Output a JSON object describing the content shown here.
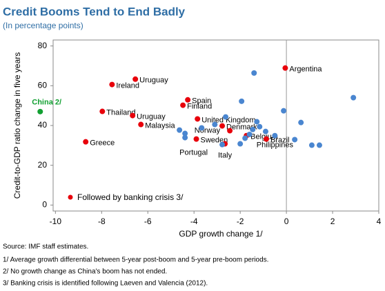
{
  "chart_data": {
    "type": "scatter",
    "title": "Credit Booms Tend to End Badly",
    "subtitle": "(In percentage points)",
    "x_label": "GDP growth change 1/",
    "y_label": "Credit-to-GDP ratio change in five years",
    "xlim": [
      -10.1,
      4
    ],
    "ylim": [
      -3,
      83
    ],
    "xticks": [
      -10,
      -8,
      -6,
      -4,
      -2,
      0,
      2,
      4
    ],
    "yticks": [
      0,
      20,
      40,
      60,
      80
    ],
    "series": [
      {
        "name": "Followed by banking crisis 3/",
        "color": "#e8000b",
        "x": [
          -6.54,
          -7.55,
          -0.05,
          -4.27,
          -4.48,
          -7.97,
          -6.66,
          -6.3,
          -3.85,
          -2.78,
          -2.45,
          -3.9,
          -8.69,
          -2.66,
          -1.73,
          -0.87
        ],
        "values": [
          63.3,
          60.6,
          68.9,
          52.9,
          50.2,
          47.1,
          45,
          40.5,
          43.3,
          39.8,
          37.4,
          33.2,
          31.8,
          30.8,
          34.9,
          33.2
        ],
        "labels": [
          "Uruguay",
          "Ireland",
          "Argentina",
          "Spain",
          "Finland",
          "Thailand",
          "Uruguay",
          "Malaysia",
          "United Kingdom",
          "Denmark",
          "Norway",
          "Sweden",
          "Greece",
          "Italy",
          "Belgium",
          "Brazil"
        ]
      },
      {
        "color": "#4a86d0",
        "x": [
          -1.4,
          -1.94,
          2.9,
          -0.12,
          0.63,
          -2.63,
          -4.63,
          -4.39,
          -4.39,
          -3.67,
          -1.28,
          -1.46,
          -1.6,
          -1.79,
          -2.0,
          -1.16,
          -0.9,
          -0.5,
          0.36,
          1.1,
          1.43,
          -2.78,
          -3.1
        ],
        "values": [
          66.4,
          52.2,
          54,
          47.4,
          41.5,
          44.3,
          37.7,
          36,
          33.9,
          38.8,
          41.9,
          38,
          35.5,
          33.6,
          30.8,
          39.4,
          37,
          34.9,
          32.9,
          30.1,
          30.1,
          30.4,
          40.5
        ],
        "labels": [
          null,
          null,
          null,
          null,
          null,
          null,
          null,
          null,
          "Portugal",
          null,
          null,
          null,
          null,
          null,
          null,
          null,
          null,
          "Philippines",
          null,
          null,
          null,
          null,
          null
        ]
      },
      {
        "color": "#12a032",
        "x": [
          -10.66
        ],
        "values": [
          47
        ],
        "labels": [
          "China 2/"
        ]
      }
    ],
    "notes": [
      "Source: IMF staff estimates.",
      "1/ Average growth differential between 5-year post-boom and 5-year pre-boom periods.",
      "2/ No growth change as China's boom has not ended.",
      "3/ Banking crisis is identified following Laeven and Valencia (2012)."
    ]
  }
}
